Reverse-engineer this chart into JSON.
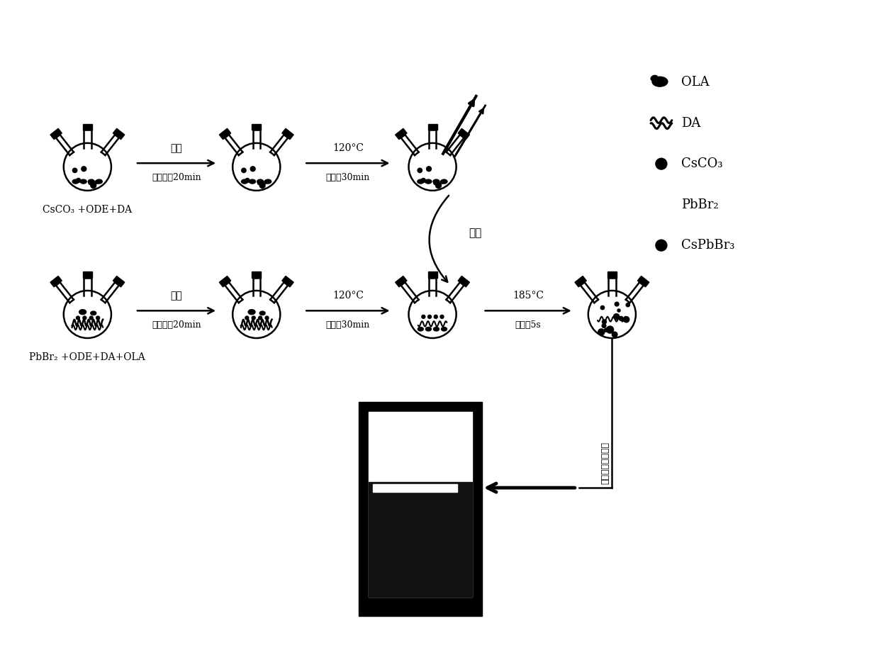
{
  "bg_color": "#ffffff",
  "text_color": "#000000",
  "row1_label": "CsCO₃ +ODE+DA",
  "row2_label": "PbBr₂ +ODE+DA+OLA",
  "arrow1_top": "室温",
  "arrow1_bottom": "抽真空，20min",
  "arrow2_top": "120°C",
  "arrow2_bottom": "氮气，30min",
  "arrow3_top": "185°C",
  "arrow3_bottom": "氮气，5s",
  "inject_label": "注入",
  "legend_items": [
    "OLA",
    "DA",
    "CsCO₃",
    "PbBr₂",
    "CsPbBr₃"
  ],
  "legend_markers": [
    "blob",
    "wave",
    "dot",
    "none",
    "dot"
  ],
  "cooling_label": "冷却，离取量子点"
}
